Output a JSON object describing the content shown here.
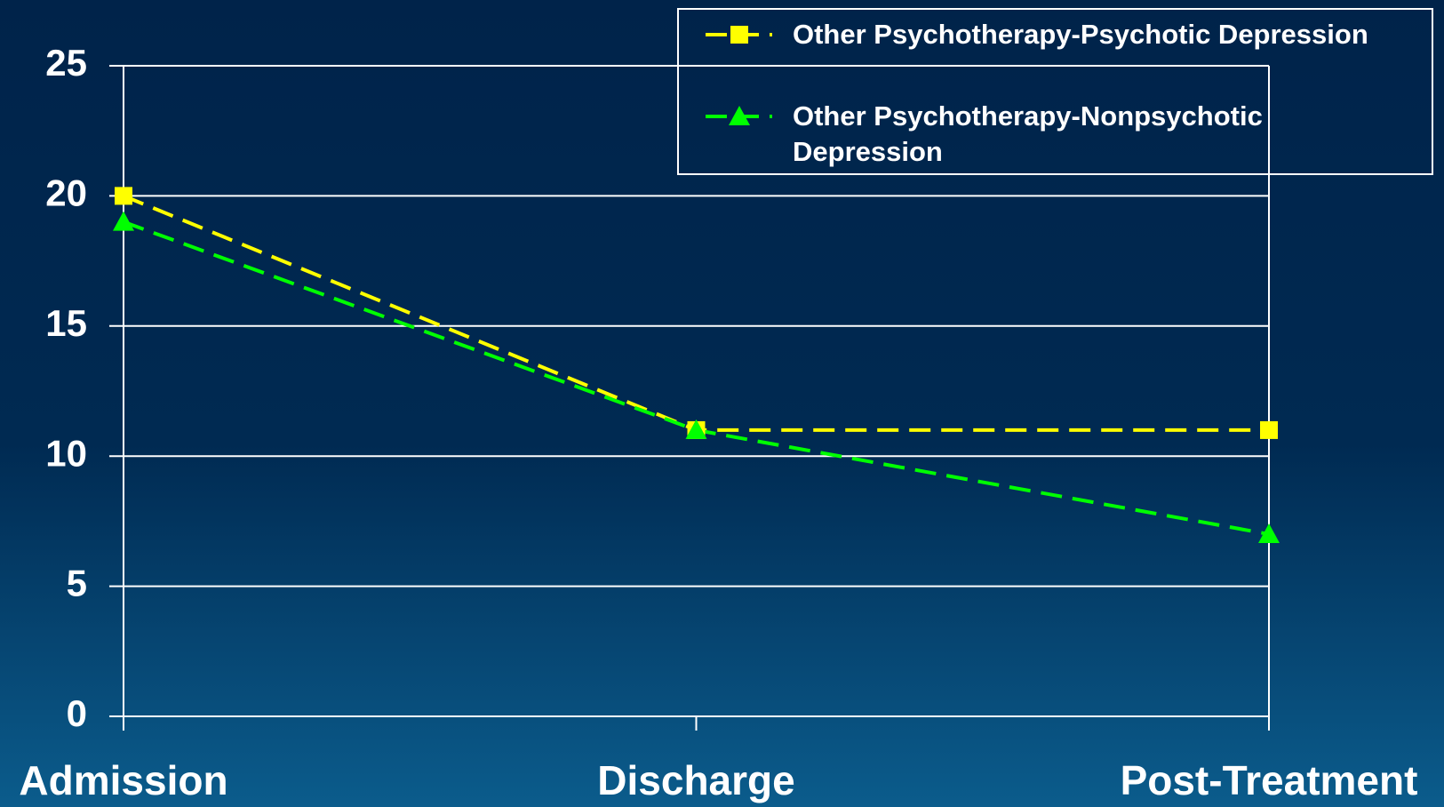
{
  "chart_data": {
    "type": "line",
    "categories": [
      "Admission",
      "Discharge",
      "Post-Treatment"
    ],
    "series": [
      {
        "name": "Other Psychotherapy-Psychotic Depression",
        "color": "#ffff00",
        "marker": "square",
        "values": [
          20,
          11,
          11
        ]
      },
      {
        "name": "Other Psychotherapy-Nonpsychotic Depression",
        "color": "#00ff00",
        "marker": "triangle",
        "values": [
          19,
          11,
          7
        ]
      }
    ],
    "ylim": [
      0,
      25
    ],
    "yticks": [
      0,
      5,
      10,
      15,
      20,
      25
    ],
    "grid": true
  }
}
